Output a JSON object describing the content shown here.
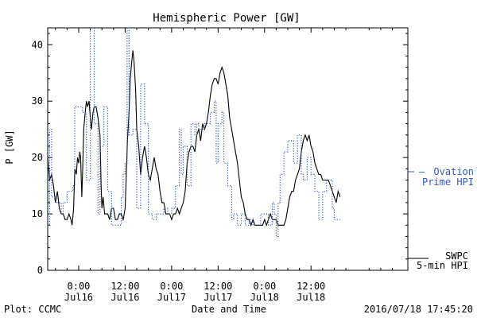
{
  "chart_data": {
    "type": "line",
    "title": "Hemispheric Power [GW]",
    "xlabel": "Date and Time",
    "ylabel": "P [GW]",
    "ylim": [
      0,
      43
    ],
    "yticks": [
      0,
      10,
      20,
      30,
      40
    ],
    "xlim": [
      -8,
      85
    ],
    "x_unit": "hours since Jul16 0:00",
    "x_ticks": [
      {
        "x": 0,
        "time": "0:00",
        "date": "Jul16"
      },
      {
        "x": 12,
        "time": "12:00",
        "date": "Jul16"
      },
      {
        "x": 24,
        "time": "0:00",
        "date": "Jul17"
      },
      {
        "x": 36,
        "time": "12:00",
        "date": "Jul17"
      },
      {
        "x": 48,
        "time": "0:00",
        "date": "Jul18"
      },
      {
        "x": 60,
        "time": "12:00",
        "date": "Jul18"
      }
    ],
    "grid": false,
    "series": [
      {
        "name": "SWPC 5-min HPI",
        "style": "solid",
        "color": "#000000",
        "points": [
          [
            -8,
            20
          ],
          [
            -7.5,
            16
          ],
          [
            -7,
            17
          ],
          [
            -6.5,
            15
          ],
          [
            -6,
            12
          ],
          [
            -5.5,
            14
          ],
          [
            -5,
            11
          ],
          [
            -4.5,
            10
          ],
          [
            -4,
            10
          ],
          [
            -3.5,
            9
          ],
          [
            -3,
            9
          ],
          [
            -2.5,
            10
          ],
          [
            -2,
            9
          ],
          [
            -1.7,
            8
          ],
          [
            -1.3,
            11
          ],
          [
            -1,
            18
          ],
          [
            -0.6,
            17
          ],
          [
            -0.3,
            20
          ],
          [
            0,
            19
          ],
          [
            0.3,
            21
          ],
          [
            0.5,
            20
          ],
          [
            0.8,
            13
          ],
          [
            1,
            17
          ],
          [
            1.3,
            25
          ],
          [
            1.7,
            28
          ],
          [
            2,
            30
          ],
          [
            2.3,
            29
          ],
          [
            2.7,
            30
          ],
          [
            3,
            27
          ],
          [
            3.3,
            25
          ],
          [
            3.7,
            28
          ],
          [
            4,
            29
          ],
          [
            4.5,
            29
          ],
          [
            5,
            27
          ],
          [
            5.5,
            24
          ],
          [
            5.8,
            15
          ],
          [
            6,
            11
          ],
          [
            6.3,
            13
          ],
          [
            6.7,
            10
          ],
          [
            7,
            10
          ],
          [
            7.5,
            10
          ],
          [
            8,
            9
          ],
          [
            8.5,
            11
          ],
          [
            9,
            11
          ],
          [
            9.5,
            9
          ],
          [
            10,
            9
          ],
          [
            10.5,
            10
          ],
          [
            11,
            10
          ],
          [
            11.5,
            9
          ],
          [
            12,
            11
          ],
          [
            12.3,
            17
          ],
          [
            12.6,
            23
          ],
          [
            13,
            28
          ],
          [
            13.3,
            34
          ],
          [
            13.7,
            37
          ],
          [
            14,
            39
          ],
          [
            14.3,
            37
          ],
          [
            14.7,
            32
          ],
          [
            15,
            25
          ],
          [
            15.5,
            22
          ],
          [
            16,
            17
          ],
          [
            16.5,
            20
          ],
          [
            17,
            22
          ],
          [
            17.5,
            20
          ],
          [
            18,
            17
          ],
          [
            18.5,
            16
          ],
          [
            19,
            18
          ],
          [
            19.5,
            20
          ],
          [
            20,
            18
          ],
          [
            20.5,
            17
          ],
          [
            21,
            14
          ],
          [
            21.5,
            12
          ],
          [
            22,
            12
          ],
          [
            22.5,
            10
          ],
          [
            23,
            10
          ],
          [
            23.5,
            10
          ],
          [
            24,
            9
          ],
          [
            24.5,
            10
          ],
          [
            25,
            10
          ],
          [
            25.5,
            11
          ],
          [
            26,
            10
          ],
          [
            26.5,
            11
          ],
          [
            27,
            12
          ],
          [
            27.5,
            14
          ],
          [
            28,
            19
          ],
          [
            28.5,
            21
          ],
          [
            29,
            22
          ],
          [
            29.5,
            22
          ],
          [
            30,
            21
          ],
          [
            30.5,
            24
          ],
          [
            31,
            25
          ],
          [
            31.5,
            23
          ],
          [
            32,
            26
          ],
          [
            32.5,
            25
          ],
          [
            33,
            26
          ],
          [
            33.5,
            28
          ],
          [
            34,
            31
          ],
          [
            34.5,
            33
          ],
          [
            35,
            34
          ],
          [
            35.5,
            34
          ],
          [
            36,
            33
          ],
          [
            36.5,
            35
          ],
          [
            37,
            36
          ],
          [
            37.5,
            35
          ],
          [
            38,
            33
          ],
          [
            38.5,
            31
          ],
          [
            39,
            27
          ],
          [
            39.5,
            25
          ],
          [
            40,
            23
          ],
          [
            40.5,
            21
          ],
          [
            41,
            19
          ],
          [
            41.5,
            16
          ],
          [
            42,
            13
          ],
          [
            42.5,
            12
          ],
          [
            43,
            10
          ],
          [
            43.5,
            9
          ],
          [
            44,
            9
          ],
          [
            44.5,
            8
          ],
          [
            45,
            9
          ],
          [
            45.5,
            8
          ],
          [
            46,
            8
          ],
          [
            46.5,
            8
          ],
          [
            47,
            8
          ],
          [
            47.5,
            8
          ],
          [
            48,
            9
          ],
          [
            48.5,
            8
          ],
          [
            49,
            9
          ],
          [
            49.5,
            10
          ],
          [
            50,
            9
          ],
          [
            50.5,
            9
          ],
          [
            51,
            9
          ],
          [
            51.5,
            8
          ],
          [
            52,
            8
          ],
          [
            52.5,
            8
          ],
          [
            53,
            8
          ],
          [
            53.5,
            9
          ],
          [
            54,
            11
          ],
          [
            54.5,
            13
          ],
          [
            55,
            14
          ],
          [
            55.5,
            14
          ],
          [
            56,
            16
          ],
          [
            56.5,
            17
          ],
          [
            57,
            18
          ],
          [
            57.5,
            21
          ],
          [
            58,
            23
          ],
          [
            58.5,
            24
          ],
          [
            59,
            23
          ],
          [
            59.5,
            24
          ],
          [
            60,
            22
          ],
          [
            60.5,
            21
          ],
          [
            61,
            19
          ],
          [
            61.5,
            18
          ],
          [
            62,
            17
          ],
          [
            62.5,
            17
          ],
          [
            63,
            16
          ],
          [
            63.5,
            16
          ],
          [
            64,
            16
          ],
          [
            64.5,
            16
          ],
          [
            65,
            15
          ],
          [
            65.5,
            14
          ],
          [
            66,
            13
          ],
          [
            66.5,
            12
          ],
          [
            67,
            14
          ],
          [
            67.5,
            13
          ]
        ]
      },
      {
        "name": "Ovation Prime HPI",
        "style": "dotted",
        "color": "#3355cc",
        "points": [
          [
            -8,
            8
          ],
          [
            -7.5,
            8
          ],
          [
            -7.5,
            25
          ],
          [
            -7,
            25
          ],
          [
            -7,
            13
          ],
          [
            -6,
            13
          ],
          [
            -6,
            12
          ],
          [
            -4.5,
            12
          ],
          [
            -4.5,
            10
          ],
          [
            -4,
            10
          ],
          [
            -4,
            12
          ],
          [
            -3,
            12
          ],
          [
            -3,
            14
          ],
          [
            -1.5,
            14
          ],
          [
            -1.5,
            15
          ],
          [
            -1,
            15
          ],
          [
            -1,
            29
          ],
          [
            1,
            29
          ],
          [
            1,
            28
          ],
          [
            2,
            28
          ],
          [
            2,
            16
          ],
          [
            3,
            16
          ],
          [
            3,
            43
          ],
          [
            4,
            43
          ],
          [
            4,
            26
          ],
          [
            5,
            26
          ],
          [
            5,
            10
          ],
          [
            5.5,
            10
          ],
          [
            5.5,
            22
          ],
          [
            6.5,
            22
          ],
          [
            6.5,
            29
          ],
          [
            7.5,
            29
          ],
          [
            7.5,
            14
          ],
          [
            8.5,
            14
          ],
          [
            8.5,
            8
          ],
          [
            10,
            8
          ],
          [
            10,
            8
          ],
          [
            11,
            8
          ],
          [
            11,
            13
          ],
          [
            11.5,
            13
          ],
          [
            11.5,
            17
          ],
          [
            12,
            17
          ],
          [
            12,
            19
          ],
          [
            12.5,
            19
          ],
          [
            12.5,
            43
          ],
          [
            13,
            43
          ],
          [
            13,
            24
          ],
          [
            14,
            24
          ],
          [
            14,
            25
          ],
          [
            15,
            25
          ],
          [
            15,
            11
          ],
          [
            16,
            11
          ],
          [
            16,
            33
          ],
          [
            17,
            33
          ],
          [
            17,
            26
          ],
          [
            18,
            26
          ],
          [
            18,
            10
          ],
          [
            19,
            10
          ],
          [
            19,
            9
          ],
          [
            20,
            9
          ],
          [
            20,
            10
          ],
          [
            22,
            10
          ],
          [
            22,
            11
          ],
          [
            23,
            11
          ],
          [
            23,
            10
          ],
          [
            24,
            10
          ],
          [
            24,
            11
          ],
          [
            25,
            11
          ],
          [
            25,
            15
          ],
          [
            26,
            15
          ],
          [
            26,
            25
          ],
          [
            26.5,
            25
          ],
          [
            26.5,
            17
          ],
          [
            27,
            17
          ],
          [
            27,
            22
          ],
          [
            28,
            22
          ],
          [
            28,
            15
          ],
          [
            29,
            15
          ],
          [
            29,
            26
          ],
          [
            30,
            26
          ],
          [
            30,
            24
          ],
          [
            30.5,
            24
          ],
          [
            30.5,
            26
          ],
          [
            31,
            26
          ],
          [
            31,
            25
          ],
          [
            32.5,
            25
          ],
          [
            32.5,
            26
          ],
          [
            34,
            26
          ],
          [
            34,
            28
          ],
          [
            35,
            28
          ],
          [
            35,
            30
          ],
          [
            35.5,
            30
          ],
          [
            35.5,
            19
          ],
          [
            36,
            19
          ],
          [
            36,
            26
          ],
          [
            37,
            26
          ],
          [
            37,
            28
          ],
          [
            37.5,
            28
          ],
          [
            37.5,
            19
          ],
          [
            38.5,
            19
          ],
          [
            38.5,
            15
          ],
          [
            39.5,
            15
          ],
          [
            39.5,
            9
          ],
          [
            40,
            9
          ],
          [
            40,
            10
          ],
          [
            41,
            10
          ],
          [
            41,
            8
          ],
          [
            42,
            8
          ],
          [
            42,
            10
          ],
          [
            43,
            10
          ],
          [
            43,
            8
          ],
          [
            44,
            8
          ],
          [
            44,
            9
          ],
          [
            45,
            9
          ],
          [
            45,
            8
          ],
          [
            47,
            8
          ],
          [
            47,
            10
          ],
          [
            49,
            10
          ],
          [
            49,
            8
          ],
          [
            50,
            8
          ],
          [
            50,
            12
          ],
          [
            50.5,
            12
          ],
          [
            50.5,
            10
          ],
          [
            51,
            10
          ],
          [
            51,
            6
          ],
          [
            51.5,
            6
          ],
          [
            51.5,
            12
          ],
          [
            52,
            12
          ],
          [
            52,
            17
          ],
          [
            53,
            17
          ],
          [
            53,
            21
          ],
          [
            54,
            21
          ],
          [
            54,
            23
          ],
          [
            55.5,
            23
          ],
          [
            55.5,
            19
          ],
          [
            56.5,
            19
          ],
          [
            56.5,
            24
          ],
          [
            57.5,
            24
          ],
          [
            57.5,
            17
          ],
          [
            58,
            17
          ],
          [
            58,
            16
          ],
          [
            59,
            16
          ],
          [
            59,
            20
          ],
          [
            60,
            20
          ],
          [
            60,
            17
          ],
          [
            61,
            17
          ],
          [
            61,
            14
          ],
          [
            62,
            14
          ],
          [
            62,
            9
          ],
          [
            63,
            9
          ],
          [
            63,
            14
          ],
          [
            64,
            14
          ],
          [
            64,
            16
          ],
          [
            65.5,
            16
          ],
          [
            65.5,
            11
          ],
          [
            66,
            11
          ],
          [
            66,
            9
          ],
          [
            67.5,
            9
          ]
        ]
      }
    ],
    "legend": {
      "placement": "right",
      "entries": [
        {
          "series": "Ovation Prime HPI",
          "label_line1": "Ovation",
          "label_line2": "Prime HPI",
          "marker": "–"
        },
        {
          "series": "SWPC 5-min HPI",
          "label_line1": "SWPC",
          "label_line2": "5-min HPI"
        }
      ]
    }
  },
  "footer": {
    "left": "Plot: CCMC",
    "right": "2016/07/18 17:45:20"
  }
}
